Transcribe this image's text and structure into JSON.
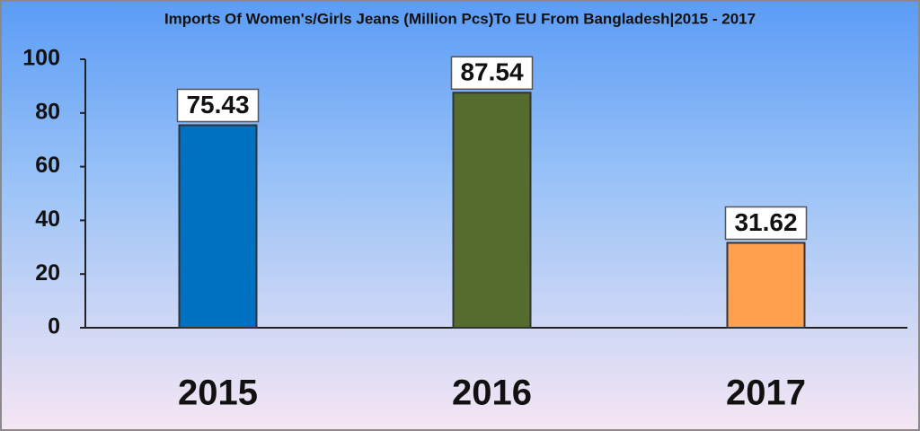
{
  "chart_data": {
    "type": "bar",
    "title": "Imports Of Women's/Girls Jeans (Million Pcs)To EU From Bangladesh|2015 - 2017",
    "categories": [
      "2015",
      "2016",
      "2017"
    ],
    "values": [
      75.43,
      87.54,
      31.62
    ],
    "colors": [
      "#0070c0",
      "#566b2e",
      "#ffa04f"
    ],
    "ylim": [
      0,
      100
    ],
    "yticks": [
      0,
      20,
      40,
      60,
      80,
      100
    ],
    "grid": false
  }
}
